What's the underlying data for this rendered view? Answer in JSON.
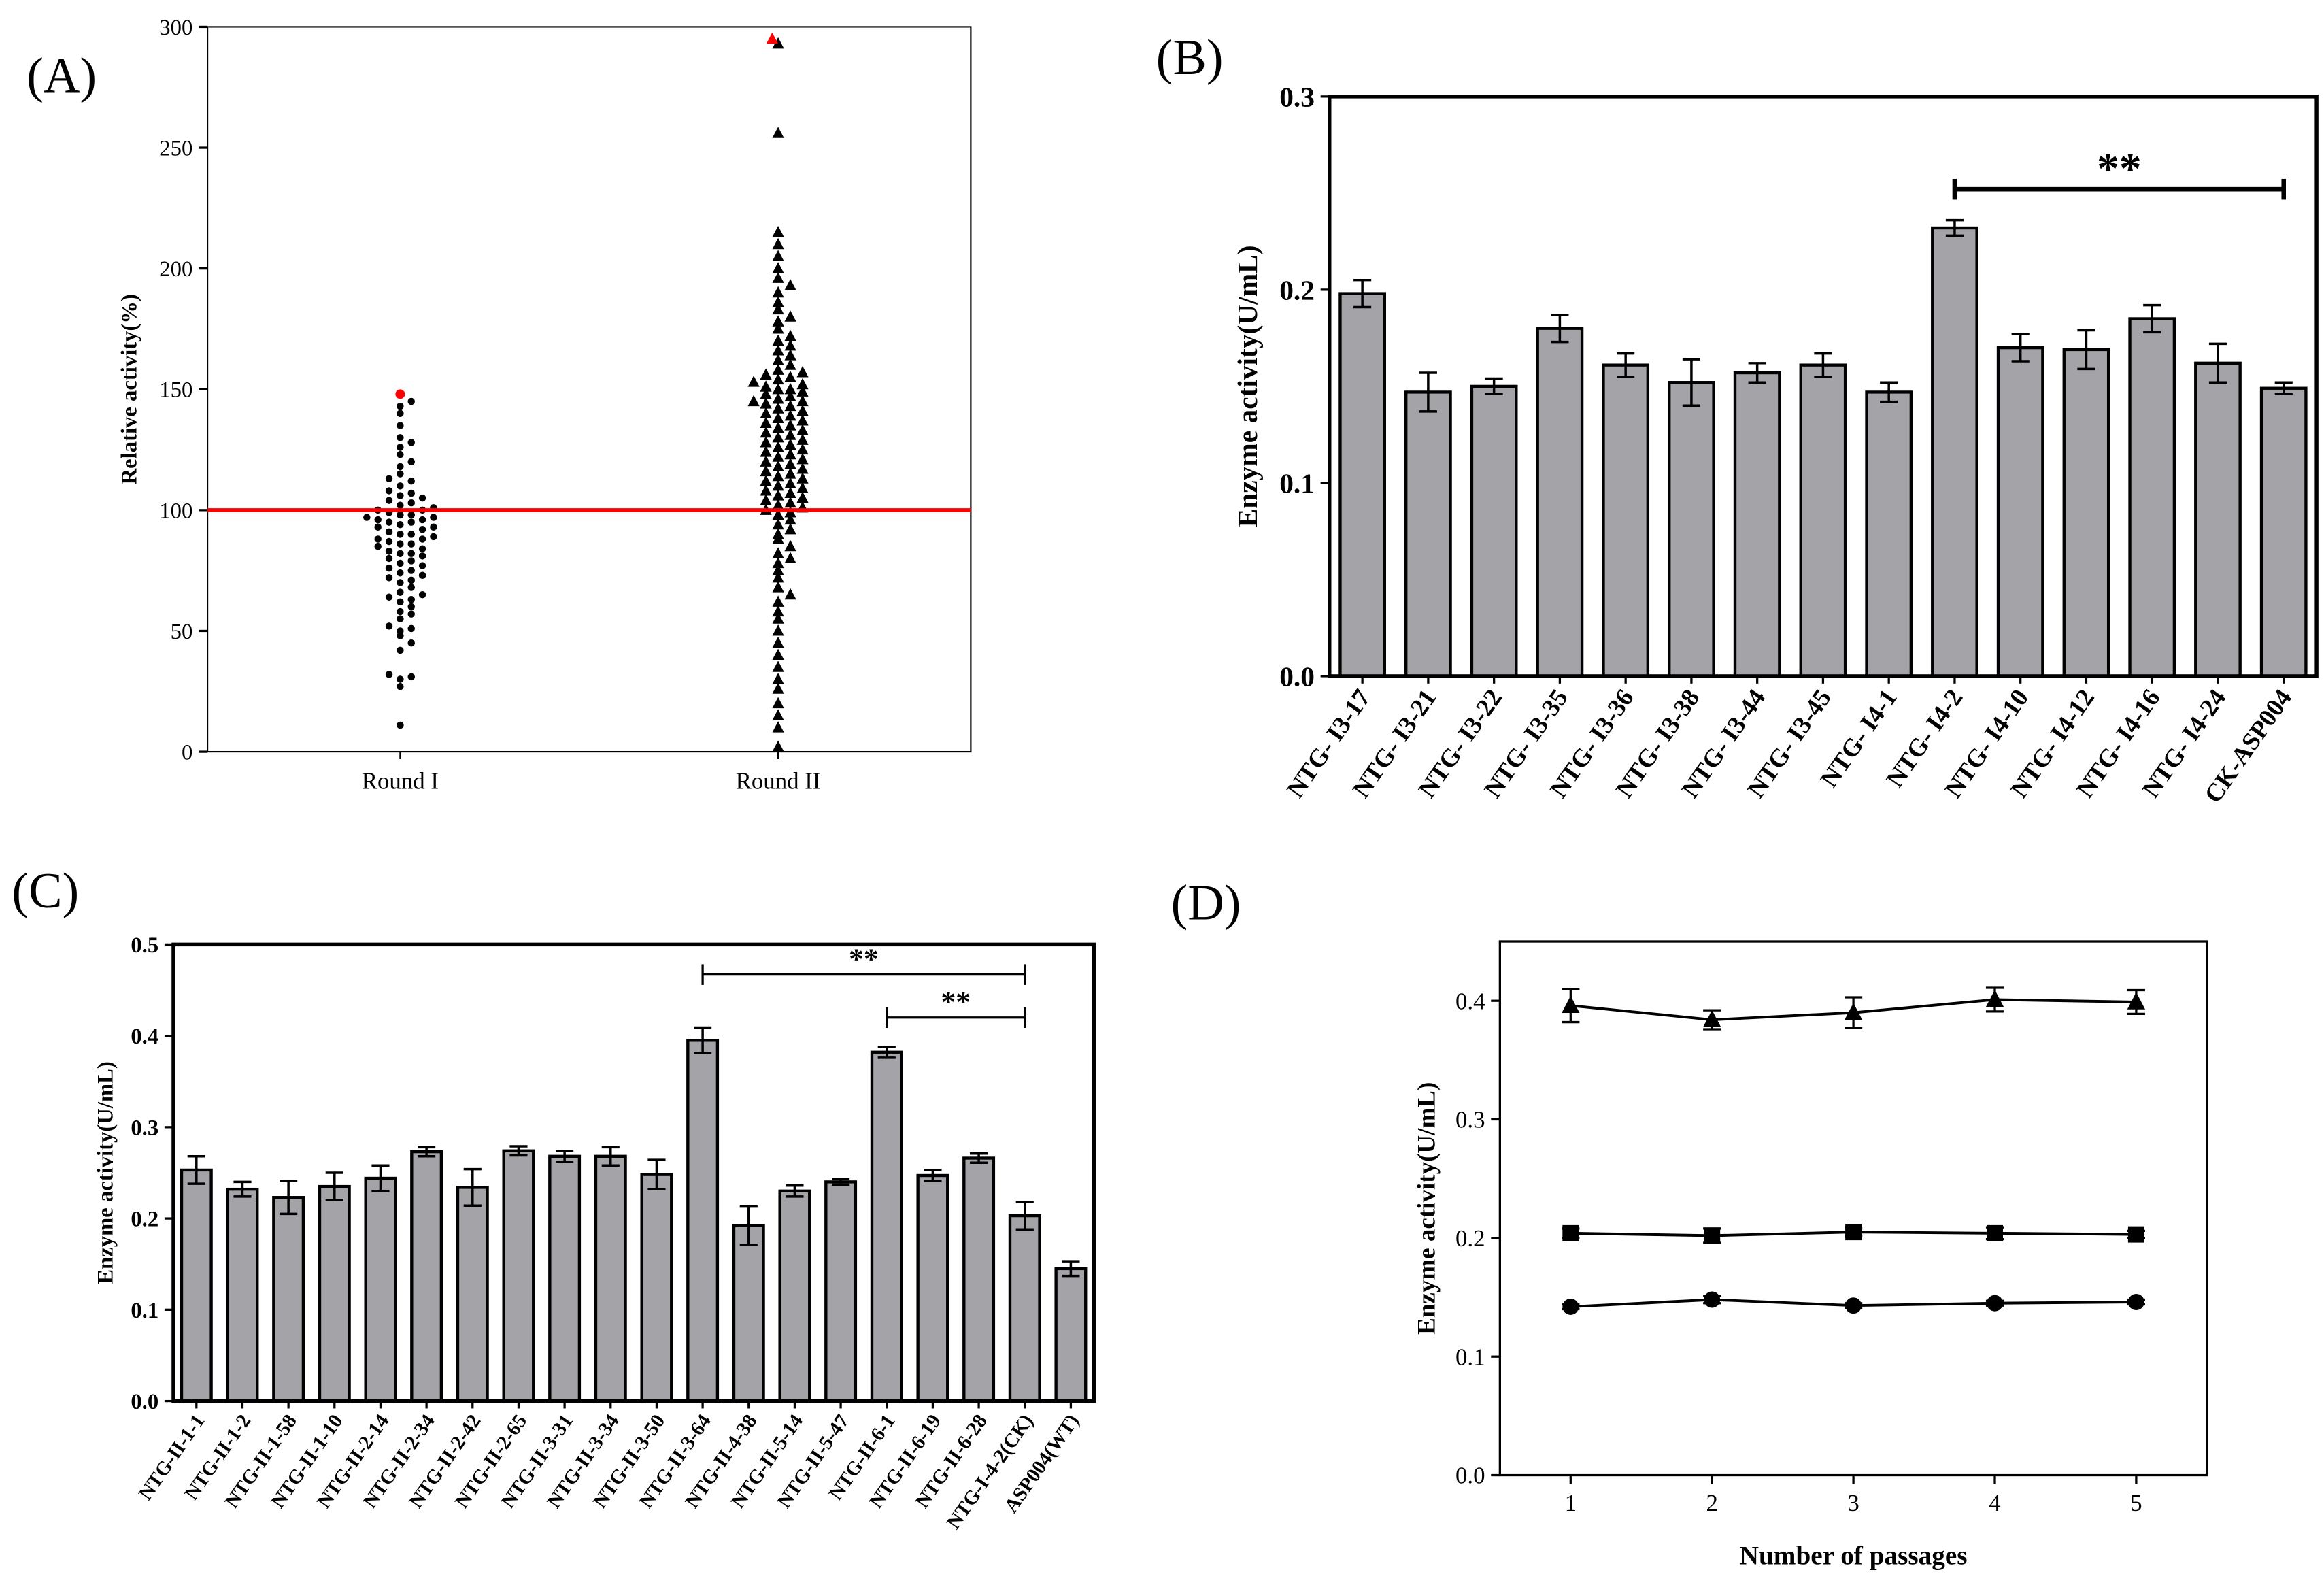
{
  "chart_data": [
    {
      "panel": "(A)",
      "type": "scatter",
      "ylabel": "Relative activity(%)",
      "xlabel": "",
      "categories": [
        "Round I",
        "Round II"
      ],
      "ylim": [
        0,
        300
      ],
      "yticks": [
        0,
        50,
        100,
        150,
        200,
        250,
        300
      ],
      "reference_line": {
        "y": 100,
        "color": "#ff0000"
      },
      "highlight_color": "#ff0000",
      "series": [
        {
          "category": "Round I",
          "marker": "circle",
          "highlight": 148,
          "values": [
            11,
            27,
            30,
            31,
            32,
            42,
            45,
            48,
            50,
            51,
            52,
            55,
            57,
            58,
            60,
            62,
            63,
            64,
            65,
            66,
            68,
            70,
            71,
            72,
            73,
            74,
            75,
            76,
            77,
            78,
            79,
            80,
            81,
            82,
            82,
            83,
            84,
            85,
            86,
            86,
            87,
            88,
            88,
            89,
            90,
            90,
            91,
            92,
            93,
            93,
            94,
            95,
            95,
            96,
            96,
            97,
            97,
            98,
            98,
            99,
            100,
            100,
            101,
            102,
            103,
            104,
            105,
            106,
            107,
            108,
            110,
            112,
            113,
            115,
            118,
            120,
            123,
            126,
            128,
            130,
            135,
            140,
            143,
            145
          ]
        },
        {
          "category": "Round II",
          "marker": "triangle",
          "highlight": 295,
          "values": [
            2,
            10,
            15,
            20,
            26,
            30,
            35,
            40,
            45,
            50,
            55,
            58,
            62,
            65,
            68,
            72,
            75,
            78,
            80,
            82,
            85,
            88,
            90,
            92,
            94,
            96,
            98,
            99,
            100,
            101,
            102,
            103,
            104,
            105,
            106,
            107,
            108,
            109,
            110,
            111,
            112,
            113,
            114,
            115,
            116,
            117,
            118,
            119,
            120,
            121,
            122,
            123,
            124,
            125,
            126,
            127,
            128,
            129,
            130,
            131,
            132,
            133,
            134,
            135,
            136,
            137,
            138,
            139,
            140,
            141,
            142,
            143,
            144,
            145,
            145,
            146,
            147,
            148,
            149,
            150,
            150,
            151,
            152,
            153,
            154,
            155,
            156,
            157,
            158,
            160,
            162,
            164,
            166,
            168,
            170,
            172,
            175,
            178,
            180,
            183,
            186,
            190,
            193,
            196,
            200,
            205,
            210,
            215,
            256,
            293
          ]
        }
      ]
    },
    {
      "panel": "(B)",
      "type": "bar",
      "ylabel": "Enzyme activity(U/mL)",
      "xlabel": "",
      "ylim": [
        0,
        0.3
      ],
      "yticks": [
        "0.0",
        "0.1",
        "0.2",
        "0.3"
      ],
      "bar_color": "#a3a3a8",
      "categories": [
        "NTG- I3-17",
        "NTG- I3-21",
        "NTG- I3-22",
        "NTG- I3-35",
        "NTG- I3-36",
        "NTG- I3-38",
        "NTG- I3-44",
        "NTG- I3-45",
        "NTG- I4-1",
        "NTG- I4-2",
        "NTG- I4-10",
        "NTG- I4-12",
        "NTG- I4-16",
        "NTG- I4-24",
        "CK-ASP004"
      ],
      "values": [
        0.198,
        0.147,
        0.15,
        0.18,
        0.161,
        0.152,
        0.157,
        0.161,
        0.147,
        0.232,
        0.17,
        0.169,
        0.185,
        0.162,
        0.149
      ],
      "errors": [
        0.007,
        0.01,
        0.004,
        0.007,
        0.006,
        0.012,
        0.005,
        0.006,
        0.005,
        0.004,
        0.007,
        0.01,
        0.007,
        0.01,
        0.003
      ],
      "significance": [
        {
          "from": "NTG- I4-2",
          "to": "CK-ASP004",
          "y": 0.252,
          "label": "**"
        }
      ]
    },
    {
      "panel": "(C)",
      "type": "bar",
      "ylabel": "Enzyme activity(U/mL)",
      "xlabel": "",
      "ylim": [
        0,
        0.5
      ],
      "yticks": [
        "0.0",
        "0.1",
        "0.2",
        "0.3",
        "0.4",
        "0.5"
      ],
      "bar_color": "#a3a3a8",
      "categories": [
        "NTG-II-1-1",
        "NTG-II-1-2",
        "NTG-II-1-58",
        "NTG-II-1-10",
        "NTG-II-2-14",
        "NTG-II-2-34",
        "NTG-II-2-42",
        "NTG-II-2-65",
        "NTG-II-3-31",
        "NTG-II-3-34",
        "NTG-II-3-50",
        "NTG-II-3-64",
        "NTG-II-4-38",
        "NTG-II-5-14",
        "NTG-II-5-47",
        "NTG-II-6-1",
        "NTG-II-6-19",
        "NTG-II-6-28",
        "NTG-I-4-2(CK)",
        "ASP004(WT)"
      ],
      "values": [
        0.253,
        0.232,
        0.223,
        0.235,
        0.244,
        0.273,
        0.234,
        0.274,
        0.268,
        0.268,
        0.248,
        0.395,
        0.192,
        0.23,
        0.24,
        0.382,
        0.247,
        0.266,
        0.203,
        0.145
      ],
      "errors": [
        0.015,
        0.008,
        0.018,
        0.015,
        0.014,
        0.005,
        0.02,
        0.005,
        0.006,
        0.01,
        0.016,
        0.014,
        0.021,
        0.006,
        0.003,
        0.006,
        0.006,
        0.005,
        0.015,
        0.008
      ],
      "significance": [
        {
          "from": "NTG-II-3-64",
          "to": "NTG-I-4-2(CK)",
          "y": 0.467,
          "label": "**"
        },
        {
          "from": "NTG-II-6-1",
          "to": "NTG-I-4-2(CK)",
          "y": 0.42,
          "label": "**"
        }
      ]
    },
    {
      "panel": "(D)",
      "type": "line",
      "ylabel": "Enzyme activity(U/mL)",
      "xlabel": "Number of passages",
      "x": [
        1,
        2,
        3,
        4,
        5
      ],
      "xlim": [
        0.5,
        5.5
      ],
      "ylim": [
        0,
        0.45
      ],
      "yticks": [
        "0.0",
        "0.1",
        "0.2",
        "0.3",
        "0.4"
      ],
      "xticks": [
        "1",
        "2",
        "3",
        "4",
        "5"
      ],
      "series": [
        {
          "marker": "triangle",
          "values": [
            0.396,
            0.384,
            0.39,
            0.401,
            0.399
          ],
          "errors": [
            0.014,
            0.008,
            0.013,
            0.01,
            0.01
          ]
        },
        {
          "marker": "square",
          "values": [
            0.204,
            0.202,
            0.205,
            0.204,
            0.203
          ],
          "errors": [
            0.004,
            0.006,
            0.003,
            0.005,
            0.003
          ]
        },
        {
          "marker": "circle",
          "values": [
            0.142,
            0.148,
            0.143,
            0.145,
            0.146
          ],
          "errors": [
            0.002,
            0.003,
            0.002,
            0.002,
            0.002
          ]
        }
      ]
    }
  ]
}
